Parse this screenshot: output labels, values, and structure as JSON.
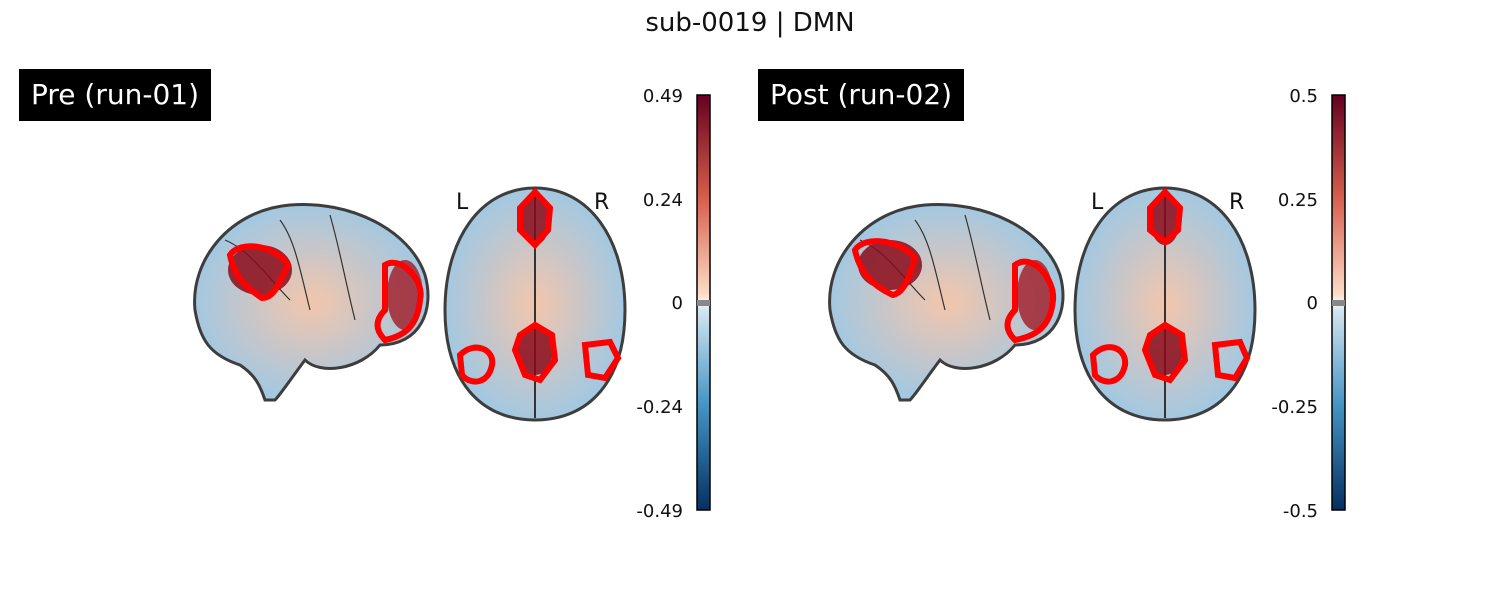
{
  "title": "sub-0019 | DMN",
  "panels": [
    {
      "label": "Pre (run-01)",
      "colorbar_ticks": [
        "0.49",
        "0.24",
        "0",
        "-0.24",
        "-0.49"
      ],
      "left_label": "L",
      "right_label": "R"
    },
    {
      "label": "Post (run-02)",
      "colorbar_ticks": [
        "0.5",
        "0.25",
        "0",
        "-0.25",
        "-0.5"
      ],
      "left_label": "L",
      "right_label": "R"
    }
  ],
  "colors": {
    "outline": "#ff0000",
    "positive": "#8b0a1a",
    "negative": "#1d4f91",
    "neutral": "#f7f7f7"
  }
}
